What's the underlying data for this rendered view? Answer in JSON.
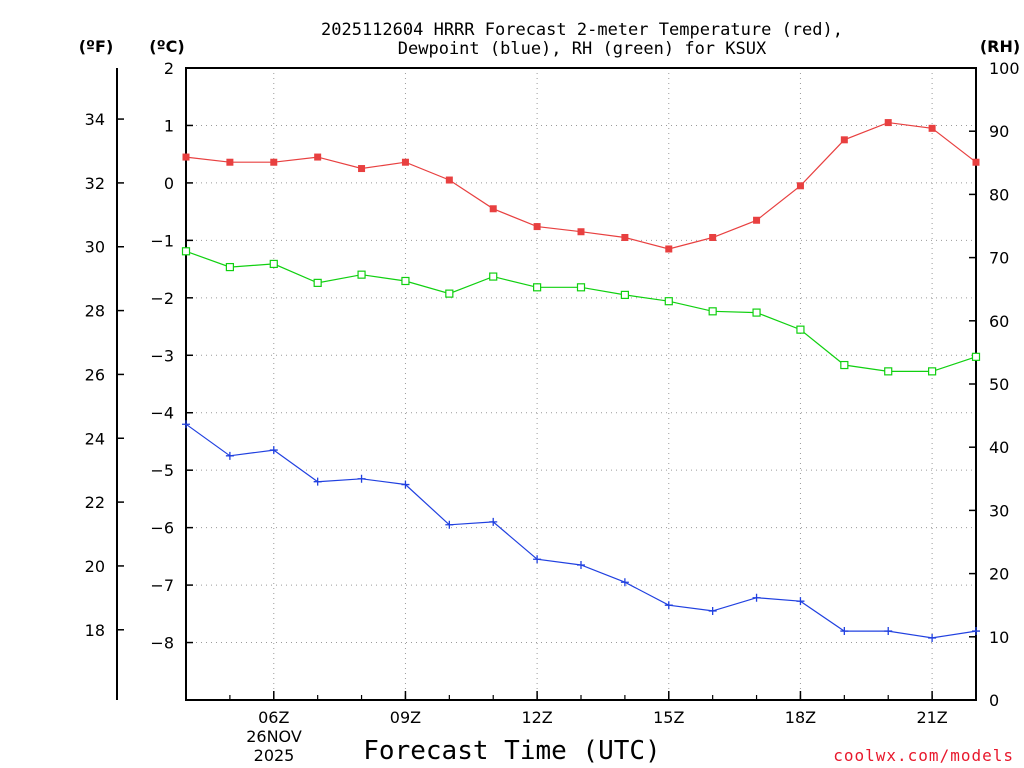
{
  "title_line1": "2025112604 HRRR Forecast 2-meter Temperature (red),",
  "title_line2": "Dewpoint (blue), RH (green) for KSUX",
  "units": {
    "fahrenheit": "(ºF)",
    "celsius": "(ºC)",
    "rh": "(RH)"
  },
  "date_label": {
    "day": "26NOV",
    "year": "2025"
  },
  "credit": "coolwx.com/models",
  "colors": {
    "temperature": "#e84040",
    "dewpoint": "#2040e0",
    "rh": "#10d010"
  },
  "chart_data": {
    "type": "line",
    "title": "2025112604 HRRR Forecast 2-meter Temperature (red), Dewpoint (blue), RH (green) for KSUX",
    "xlabel": "Forecast Time (UTC)",
    "x_hours": [
      4,
      5,
      6,
      7,
      8,
      9,
      10,
      11,
      12,
      13,
      14,
      15,
      16,
      17,
      18,
      19,
      20,
      21,
      22
    ],
    "xlim": [
      4,
      22
    ],
    "x_ticks": [
      {
        "hour": 6,
        "label": "06Z"
      },
      {
        "hour": 9,
        "label": "09Z"
      },
      {
        "hour": 12,
        "label": "12Z"
      },
      {
        "hour": 15,
        "label": "15Z"
      },
      {
        "hour": 18,
        "label": "18Z"
      },
      {
        "hour": 21,
        "label": "21Z"
      }
    ],
    "celsius_axis": {
      "range": [
        -9,
        2
      ],
      "ticks": [
        "2",
        "1",
        "0",
        "−1",
        "−2",
        "−3",
        "−4",
        "−5",
        "−6",
        "−7",
        "−8"
      ],
      "tick_values": [
        2,
        1,
        0,
        -1,
        -2,
        -3,
        -4,
        -5,
        -6,
        -7,
        -8
      ]
    },
    "fahrenheit_axis": {
      "range": [
        15.8,
        35.6
      ],
      "ticks": [
        "34",
        "32",
        "30",
        "28",
        "26",
        "24",
        "22",
        "20",
        "18"
      ],
      "tick_values": [
        34,
        32,
        30,
        28,
        26,
        24,
        22,
        20,
        18
      ]
    },
    "rh_axis": {
      "range": [
        0,
        100
      ],
      "ticks": [
        "100",
        "90",
        "80",
        "70",
        "60",
        "50",
        "40",
        "30",
        "20",
        "10",
        "0"
      ],
      "tick_values": [
        100,
        90,
        80,
        70,
        60,
        50,
        40,
        30,
        20,
        10,
        0
      ]
    },
    "series": [
      {
        "name": "Temperature",
        "units": "C",
        "axis": "celsius",
        "values": [
          0.45,
          0.36,
          0.36,
          0.45,
          0.25,
          0.36,
          0.05,
          -0.45,
          -0.76,
          -0.85,
          -0.95,
          -1.15,
          -0.95,
          -0.65,
          -0.05,
          0.75,
          1.05,
          0.95,
          0.36
        ]
      },
      {
        "name": "Dewpoint",
        "units": "C",
        "axis": "celsius",
        "values": [
          -4.2,
          -4.75,
          -4.65,
          -5.2,
          -5.15,
          -5.25,
          -5.95,
          -5.9,
          -6.55,
          -6.65,
          -6.95,
          -7.35,
          -7.45,
          -7.22,
          -7.28,
          -7.8,
          -7.8,
          -7.92,
          -7.8
        ]
      },
      {
        "name": "RH",
        "units": "%",
        "axis": "rh",
        "values": [
          71,
          68.5,
          69,
          66,
          67.3,
          66.3,
          64.3,
          67,
          65.3,
          65.3,
          64.1,
          63.1,
          61.5,
          61.3,
          58.6,
          53,
          52,
          52,
          54.3
        ]
      }
    ]
  }
}
